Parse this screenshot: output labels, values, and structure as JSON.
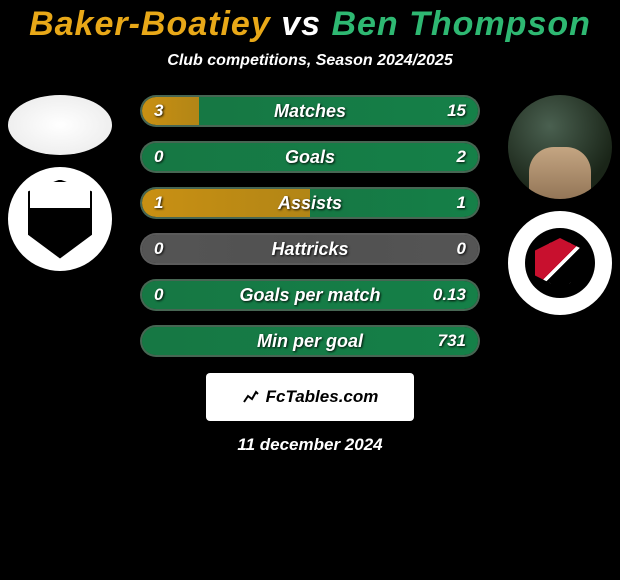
{
  "header": {
    "player1": "Baker-Boatiey",
    "vs": "vs",
    "player2": "Ben Thompson",
    "subtitle": "Club competitions, Season 2024/2025",
    "player1_color": "#e8a818",
    "vs_color": "#ffffff",
    "player2_color": "#2eb872"
  },
  "stats": [
    {
      "label": "Matches",
      "left_value": "3",
      "right_value": "15",
      "left_pct": 17,
      "right_pct": 83,
      "left_color": "#c99013",
      "right_color": "#158048",
      "bg_color": "#1a4028"
    },
    {
      "label": "Goals",
      "left_value": "0",
      "right_value": "2",
      "left_pct": 0,
      "right_pct": 100,
      "left_color": "#c99013",
      "right_color": "#158048",
      "bg_color": "#1a4028"
    },
    {
      "label": "Assists",
      "left_value": "1",
      "right_value": "1",
      "left_pct": 50,
      "right_pct": 50,
      "left_color": "#c99013",
      "right_color": "#158048",
      "bg_color": "#1a4028"
    },
    {
      "label": "Hattricks",
      "left_value": "0",
      "right_value": "0",
      "left_pct": 50,
      "right_pct": 50,
      "left_color": "#555555",
      "right_color": "#555555",
      "bg_color": "#333333"
    },
    {
      "label": "Goals per match",
      "left_value": "0",
      "right_value": "0.13",
      "left_pct": 0,
      "right_pct": 100,
      "left_color": "#c99013",
      "right_color": "#158048",
      "bg_color": "#1a4028"
    },
    {
      "label": "Min per goal",
      "left_value": "",
      "right_value": "731",
      "left_pct": 0,
      "right_pct": 100,
      "left_color": "#c99013",
      "right_color": "#158048",
      "bg_color": "#1a4028"
    }
  ],
  "attribution": {
    "text": "FcTables.com"
  },
  "date": "11 december 2024"
}
